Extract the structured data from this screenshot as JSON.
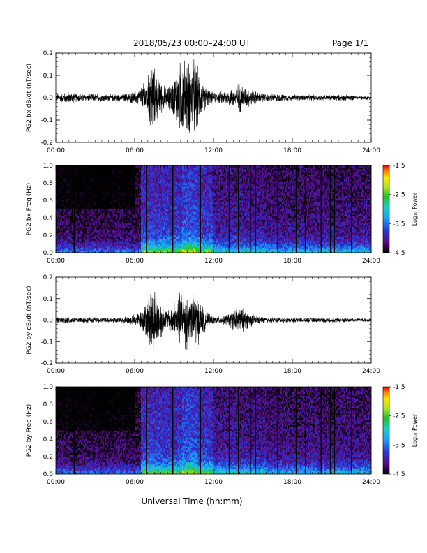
{
  "header": {
    "title": "2018/05/23  00:00–24:00 UT",
    "page": "Page 1/1"
  },
  "footer": {
    "xlabel": "Universal Time (hh:mm)"
  },
  "colorbar": {
    "label": "Log₁₀ Power",
    "ticks": [
      "-1.5",
      "-2.5",
      "-3.5",
      "-4.5"
    ],
    "tick_values": [
      -1.5,
      -2.5,
      -3.5,
      -4.5
    ],
    "range": [
      -4.5,
      -1.5
    ],
    "colors": [
      "#000000",
      "#5a0a82",
      "#2a36d8",
      "#1ea0ff",
      "#19d1c0",
      "#23c02e",
      "#b4e61e",
      "#ffe600",
      "#ff8a00",
      "#ff0000"
    ]
  },
  "chart_data": [
    {
      "type": "line",
      "ylabel": "PG2 bx dB/dt (nT/sec)",
      "xlim": [
        0,
        24
      ],
      "ylim": [
        -0.2,
        0.2
      ],
      "x_ticks": [
        "00:00",
        "06:00",
        "12:00",
        "18:00",
        "24:00"
      ],
      "y_ticks": [
        "0.2",
        "0.1",
        "0.0",
        "-0.1",
        "-0.2"
      ],
      "y_tick_values": [
        0.2,
        0.1,
        0.0,
        -0.1,
        -0.2
      ],
      "envelope": {
        "hours": [
          0,
          0.5,
          1,
          2,
          3,
          4,
          5,
          6,
          6.5,
          7,
          7.3,
          7.6,
          8,
          8.5,
          9,
          9.5,
          10,
          10.3,
          10.6,
          11,
          11.5,
          12,
          12.5,
          13,
          13.5,
          14,
          14.5,
          15,
          15.5,
          16,
          17,
          18,
          19,
          20,
          21,
          22,
          23,
          24
        ],
        "amplitude": [
          0.02,
          0.025,
          0.03,
          0.02,
          0.02,
          0.02,
          0.02,
          0.03,
          0.06,
          0.1,
          0.2,
          0.12,
          0.08,
          0.05,
          0.1,
          0.2,
          0.2,
          0.18,
          0.2,
          0.1,
          0.05,
          0.025,
          0.03,
          0.04,
          0.05,
          0.08,
          0.05,
          0.04,
          0.025,
          0.02,
          0.02,
          0.015,
          0.015,
          0.015,
          0.015,
          0.015,
          0.01,
          0.01
        ]
      }
    },
    {
      "type": "heatmap",
      "ylabel": "PG2 bx Freq (Hz)",
      "xlim": [
        0,
        24
      ],
      "ylim": [
        0.0,
        1.0
      ],
      "x_ticks": [
        "00:00",
        "06:00",
        "12:00",
        "18:00",
        "24:00"
      ],
      "y_ticks": [
        "1.0",
        "0.8",
        "0.6",
        "0.4",
        "0.2",
        "0.0"
      ],
      "y_tick_values": [
        1.0,
        0.8,
        0.6,
        0.4,
        0.2,
        0.0
      ],
      "value_range": [
        -4.5,
        -1.5
      ],
      "data_gap_hours": [
        1.4,
        6.9,
        8.9,
        11.0,
        13.2,
        13.9,
        14.8,
        15.2,
        16.9,
        18.3,
        19.0,
        20.2,
        20.9,
        21.2,
        22.5
      ]
    },
    {
      "type": "line",
      "ylabel": "PG2 by dB/dt (nT/sec)",
      "xlim": [
        0,
        24
      ],
      "ylim": [
        -0.2,
        0.2
      ],
      "x_ticks": [
        "00:00",
        "06:00",
        "12:00",
        "18:00",
        "24:00"
      ],
      "y_ticks": [
        "0.2",
        "0.1",
        "0.0",
        "-0.1",
        "-0.2"
      ],
      "y_tick_values": [
        0.2,
        0.1,
        0.0,
        -0.1,
        -0.2
      ],
      "envelope": {
        "hours": [
          0,
          0.5,
          1,
          2,
          3,
          4,
          5,
          6,
          6.5,
          7,
          7.3,
          7.6,
          8,
          8.5,
          9,
          9.5,
          10,
          10.3,
          10.6,
          11,
          11.5,
          12,
          12.5,
          13,
          13.5,
          14,
          14.5,
          15,
          15.5,
          16,
          17,
          18,
          19,
          20,
          21,
          22,
          23,
          24
        ],
        "amplitude": [
          0.015,
          0.015,
          0.02,
          0.015,
          0.015,
          0.015,
          0.015,
          0.03,
          0.05,
          0.1,
          0.2,
          0.15,
          0.1,
          0.05,
          0.1,
          0.15,
          0.18,
          0.12,
          0.15,
          0.1,
          0.04,
          0.02,
          0.02,
          0.03,
          0.05,
          0.07,
          0.05,
          0.03,
          0.02,
          0.015,
          0.015,
          0.012,
          0.012,
          0.012,
          0.012,
          0.012,
          0.01,
          0.01
        ]
      }
    },
    {
      "type": "heatmap",
      "ylabel": "PG2 by Freq (Hz)",
      "xlim": [
        0,
        24
      ],
      "ylim": [
        0.0,
        1.0
      ],
      "x_ticks": [
        "00:00",
        "06:00",
        "12:00",
        "18:00",
        "24:00"
      ],
      "y_ticks": [
        "1.0",
        "0.8",
        "0.6",
        "0.4",
        "0.2",
        "0.0"
      ],
      "y_tick_values": [
        1.0,
        0.8,
        0.6,
        0.4,
        0.2,
        0.0
      ],
      "value_range": [
        -4.5,
        -1.5
      ],
      "data_gap_hours": [
        1.4,
        6.9,
        8.9,
        11.0,
        13.2,
        13.9,
        14.8,
        15.2,
        16.9,
        18.3,
        19.0,
        20.2,
        20.9,
        21.2,
        22.5
      ]
    }
  ]
}
